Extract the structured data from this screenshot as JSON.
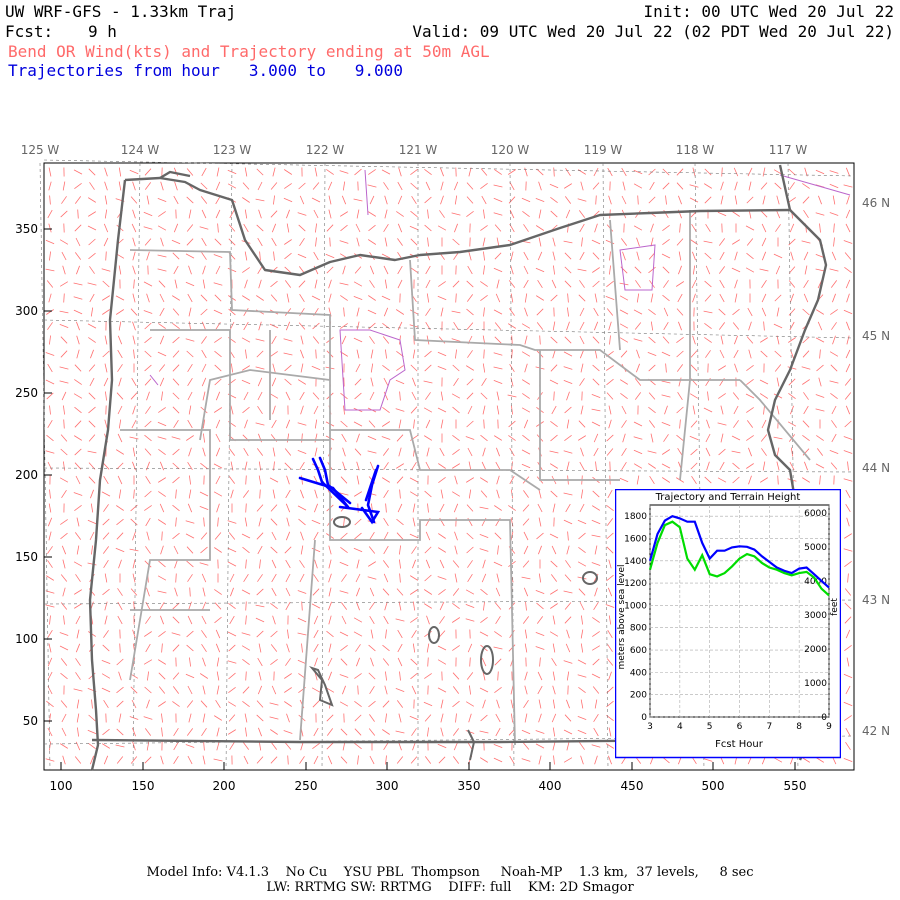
{
  "header": {
    "title": "UW WRF-GFS - 1.33km Traj",
    "init": "Init: 00 UTC Wed 20 Jul 22",
    "fcst_label": "Fcst:",
    "fcst_value": "9 h",
    "valid": "Valid: 09 UTC Wed 20 Jul 22 (02 PDT Wed 20 Jul 22)",
    "line3": "Bend OR Wind(kts) and Trajectory ending at 50m AGL",
    "line4": "Trajectories from hour   3.000 to   9.000"
  },
  "map": {
    "lon_labels": [
      "125 W",
      "124 W",
      "123 W",
      "122 W",
      "121 W",
      "120 W",
      "119 W",
      "118 W",
      "117 W"
    ],
    "lat_labels": [
      "46 N",
      "45 N",
      "44 N",
      "43 N",
      "42 N"
    ],
    "y_ticks": [
      "350",
      "300",
      "250",
      "200",
      "150",
      "100",
      "50"
    ],
    "x_ticks": [
      "100",
      "150",
      "200",
      "250",
      "300",
      "350",
      "400",
      "450",
      "500",
      "550"
    ],
    "colors": {
      "wind": "#ff7070",
      "border": "#666666",
      "county": "#aaaaaa",
      "trajectory": "#0000ff",
      "water": "#bb66cc"
    }
  },
  "inset": {
    "title": "Trajectory and Terrain Height",
    "ylabel_left": "meters above sea level",
    "ylabel_right": "feet",
    "xlabel": "Fcst Hour",
    "left_ticks": [
      "1800",
      "1600",
      "1400",
      "1200",
      "1000",
      "800",
      "600",
      "400",
      "200",
      "0"
    ],
    "right_ticks": [
      "6000",
      "5000",
      "4000",
      "3000",
      "2000",
      "1000",
      "0"
    ],
    "x_ticks": [
      "3",
      "4",
      "5",
      "6",
      "7",
      "8",
      "9"
    ],
    "chart_data": {
      "type": "line",
      "x": [
        3.0,
        3.25,
        3.5,
        3.75,
        4.0,
        4.25,
        4.5,
        4.75,
        5.0,
        5.25,
        5.5,
        5.75,
        6.0,
        6.25,
        6.5,
        6.75,
        7.0,
        7.25,
        7.5,
        7.75,
        8.0,
        8.25,
        8.5,
        8.75,
        9.0
      ],
      "series": [
        {
          "color": "#0000ff",
          "values": [
            1400,
            1640,
            1760,
            1800,
            1780,
            1750,
            1750,
            1560,
            1420,
            1490,
            1490,
            1520,
            1530,
            1525,
            1500,
            1440,
            1390,
            1340,
            1310,
            1290,
            1330,
            1340,
            1280,
            1220,
            1160
          ]
        },
        {
          "color": "#00dd00",
          "values": [
            1320,
            1560,
            1720,
            1750,
            1700,
            1420,
            1320,
            1450,
            1280,
            1260,
            1290,
            1350,
            1420,
            1460,
            1440,
            1380,
            1340,
            1320,
            1290,
            1270,
            1290,
            1300,
            1250,
            1150,
            1090
          ]
        }
      ],
      "ylim": [
        0,
        1900
      ],
      "xlim": [
        3,
        9
      ]
    }
  },
  "footer": {
    "line1": "Model Info: V4.1.3    No Cu    YSU PBL  Thompson     Noah-MP    1.3 km,  37 levels,     8 sec",
    "line2": "LW: RRTMG SW: RRTMG    DIFF: full    KM: 2D Smagor"
  }
}
